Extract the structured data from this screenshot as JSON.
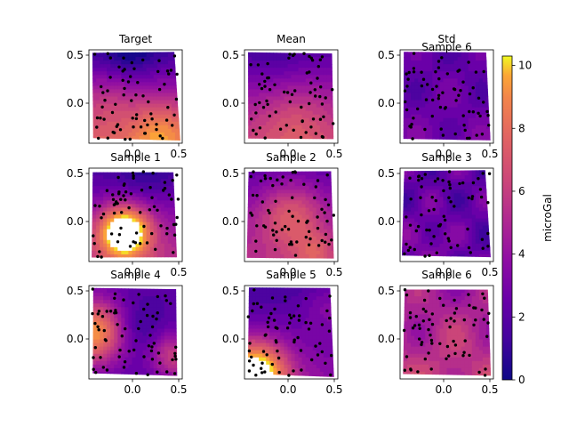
{
  "chart_data": {
    "type": "heatmap",
    "grid": "3x3 contour panels with scatter points",
    "panels": [
      {
        "title": "Target",
        "pattern": "bottom-high"
      },
      {
        "title": "Mean",
        "pattern": "mean-smooth"
      },
      {
        "title": "Std",
        "pattern": "low-flat"
      },
      {
        "title": "Sample 1",
        "pattern": "center-saturated"
      },
      {
        "title": "Sample 2",
        "pattern": "center-high"
      },
      {
        "title": "Sample 3",
        "pattern": "low-patchy"
      },
      {
        "title": "Sample 4",
        "pattern": "left-high"
      },
      {
        "title": "Sample 5",
        "pattern": "bottom-left-high"
      },
      {
        "title": "Sample 6",
        "pattern": "mid-flat"
      }
    ],
    "overlay_titles": [
      {
        "text": "Sample 6",
        "over_panel": 2
      }
    ],
    "x_ticks": [
      "0.0",
      "0.5"
    ],
    "y_ticks": [
      "0.5",
      "0.0"
    ],
    "x_range": [
      -0.45,
      0.55
    ],
    "y_range": [
      -0.45,
      0.55
    ],
    "colorbar": {
      "label": "microGal",
      "min": 0,
      "max": 10.3,
      "ticks": [
        "0",
        "2",
        "4",
        "6",
        "8",
        "10"
      ],
      "tick_values": [
        0,
        2,
        4,
        6,
        8,
        10
      ],
      "colormap": "plasma"
    },
    "points_per_panel": 70
  }
}
